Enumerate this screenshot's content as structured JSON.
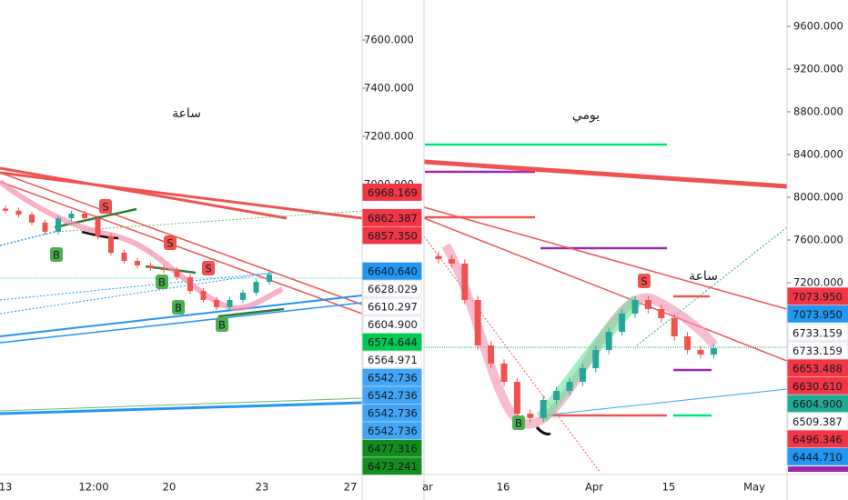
{
  "chart_data": [
    {
      "type": "candlestick",
      "annotation": "ساعة",
      "ylim": [
        5796,
        7766
      ],
      "yticks": [
        {
          "value": 7600,
          "label": "7600.000"
        },
        {
          "value": 7400,
          "label": "7400.000"
        },
        {
          "value": 7200,
          "label": "7200.000"
        },
        {
          "value": 7000,
          "label": "7000.000"
        }
      ],
      "xtick_labels": [
        "13",
        "12:00",
        "20",
        "23",
        "27"
      ],
      "up_color": "#26a69a",
      "down_color": "#ef5350",
      "signals": [
        "B",
        "B",
        "B",
        "B",
        "S",
        "S",
        "S"
      ],
      "price_tags": [
        {
          "value": 6968.169,
          "label": "6968.169",
          "color": "#f23645",
          "text_color": "#ffffff"
        },
        {
          "value": 6862.387,
          "label": "6862.387",
          "color": "#f23645",
          "text_color": "#ffffff"
        },
        {
          "value": 6857.35,
          "label": "6857.350",
          "color": "#f23645",
          "text_color": "#ffffff"
        },
        {
          "value": 6640.64,
          "label": "6640.640",
          "color": "#2196f3",
          "text_color": "#ffffff"
        },
        {
          "value": 6628.029,
          "label": "6628.029",
          "color": "#ffffff",
          "text_color": "#131722"
        },
        {
          "value": 6610.297,
          "label": "6610.297",
          "color": "#ffffff",
          "text_color": "#131722"
        },
        {
          "value": 6604.9,
          "label": "6604.900",
          "color": "#ffffff",
          "text_color": "#131722"
        },
        {
          "value": 6574.644,
          "label": "6574.644",
          "color": "#00c853",
          "text_color": "#ffffff"
        },
        {
          "value": 6564.971,
          "label": "6564.971",
          "color": "#ffffff",
          "text_color": "#131722"
        },
        {
          "value": 6542.736,
          "label": "6542.736",
          "color": "#42a5f5",
          "text_color": "#ffffff"
        },
        {
          "value": 6542.736,
          "label": "6542.736",
          "color": "#42a5f5",
          "text_color": "#ffffff"
        },
        {
          "value": 6542.736,
          "label": "6542.736",
          "color": "#42a5f5",
          "text_color": "#ffffff"
        },
        {
          "value": 6542.736,
          "label": "6542.736",
          "color": "#42a5f5",
          "text_color": "#ffffff"
        },
        {
          "value": 6477.316,
          "label": "6477.316",
          "color": "#138d1e",
          "text_color": "#ffffff"
        },
        {
          "value": 6473.241,
          "label": "6473.241",
          "color": "#138d1e",
          "text_color": "#ffffff"
        }
      ],
      "ohlc": [
        [
          6900,
          6912,
          6879,
          6891
        ],
        [
          6891,
          6903,
          6863,
          6875
        ],
        [
          6875,
          6887,
          6830,
          6842
        ],
        [
          6842,
          6854,
          6792,
          6804
        ],
        [
          6804,
          6872,
          6792,
          6860
        ],
        [
          6860,
          6891,
          6848,
          6879
        ],
        [
          6879,
          6891,
          6848,
          6860
        ],
        [
          6860,
          6872,
          6773,
          6785
        ],
        [
          6785,
          6797,
          6705,
          6717
        ],
        [
          6717,
          6729,
          6671,
          6683
        ],
        [
          6683,
          6695,
          6652,
          6664
        ],
        [
          6664,
          6676,
          6641,
          6653
        ],
        [
          6653,
          6665,
          6633,
          6645
        ],
        [
          6645,
          6657,
          6603,
          6615
        ],
        [
          6615,
          6627,
          6546,
          6558
        ],
        [
          6558,
          6570,
          6509,
          6521
        ],
        [
          6521,
          6533,
          6479,
          6491
        ],
        [
          6491,
          6533,
          6479,
          6521
        ],
        [
          6521,
          6563,
          6509,
          6551
        ],
        [
          6551,
          6608,
          6539,
          6596
        ],
        [
          6596,
          6638,
          6584,
          6626
        ]
      ]
    },
    {
      "type": "candlestick",
      "annotation": "يومي",
      "annotation2": "ساعة",
      "ylim": [
        5404,
        9847
      ],
      "yticks": [
        {
          "value": 9600,
          "label": "9600.000"
        },
        {
          "value": 9200,
          "label": "9200.000"
        },
        {
          "value": 8800,
          "label": "8800.000"
        },
        {
          "value": 8400,
          "label": "8400.000"
        },
        {
          "value": 8000,
          "label": "8000.000"
        },
        {
          "value": 7600,
          "label": "7600.000"
        },
        {
          "value": 7200,
          "label": "7200.000"
        }
      ],
      "xtick_labels": [
        "ar",
        "16",
        "Apr",
        "15",
        "May"
      ],
      "up_color": "#26a69a",
      "down_color": "#ef5350",
      "signals": [
        "S",
        "B"
      ],
      "price_tags": [
        {
          "value": 7073.95,
          "label": "7073.950",
          "color": "#f23645",
          "text_color": "#ffffff"
        },
        {
          "value": 7073.95,
          "label": "7073.950",
          "color": "#2196f3",
          "text_color": "#ffffff"
        },
        {
          "value": 6733.159,
          "label": "6733.159",
          "color": "#ffffff",
          "text_color": "#131722"
        },
        {
          "value": 6733.159,
          "label": "6733.159",
          "color": "#ffffff",
          "text_color": "#131722"
        },
        {
          "value": 6653.488,
          "label": "6653.488",
          "color": "#f23645",
          "text_color": "#ffffff"
        },
        {
          "value": 6630.61,
          "label": "6630.610",
          "color": "#f23645",
          "text_color": "#ffffff"
        },
        {
          "value": 6604.9,
          "label": "6604.900",
          "color": "#22ab94",
          "text_color": "#ffffff"
        },
        {
          "value": 6509.387,
          "label": "6509.387",
          "color": "#ffffff",
          "text_color": "#131722"
        },
        {
          "value": 6496.346,
          "label": "6496.346",
          "color": "#f23645",
          "text_color": "#ffffff"
        },
        {
          "value": 6444.71,
          "label": "6444.710",
          "color": "#2196f3",
          "text_color": "#ffffff"
        }
      ],
      "ohlc": [
        [
          7450,
          7490,
          7381,
          7421
        ],
        [
          7421,
          7461,
          7339,
          7379
        ],
        [
          7379,
          7419,
          6998,
          7038
        ],
        [
          7038,
          7078,
          6573,
          6613
        ],
        [
          6613,
          6653,
          6403,
          6443
        ],
        [
          6443,
          6483,
          6232,
          6272
        ],
        [
          6272,
          6312,
          5934,
          5974
        ],
        [
          5974,
          6014,
          5892,
          5932
        ],
        [
          5932,
          6142,
          5892,
          6102
        ],
        [
          6102,
          6227,
          6062,
          6187
        ],
        [
          6187,
          6312,
          6147,
          6272
        ],
        [
          6272,
          6440,
          6232,
          6400
        ],
        [
          6400,
          6610,
          6360,
          6570
        ],
        [
          6570,
          6780,
          6530,
          6740
        ],
        [
          6740,
          6951,
          6700,
          6911
        ],
        [
          6911,
          7078,
          6871,
          7038
        ],
        [
          7038,
          7078,
          6913,
          6953
        ],
        [
          6953,
          6993,
          6828,
          6868
        ],
        [
          6868,
          6908,
          6658,
          6698
        ],
        [
          6698,
          6738,
          6530,
          6570
        ],
        [
          6570,
          6610,
          6488,
          6528
        ],
        [
          6528,
          6627,
          6488,
          6587
        ]
      ]
    }
  ]
}
